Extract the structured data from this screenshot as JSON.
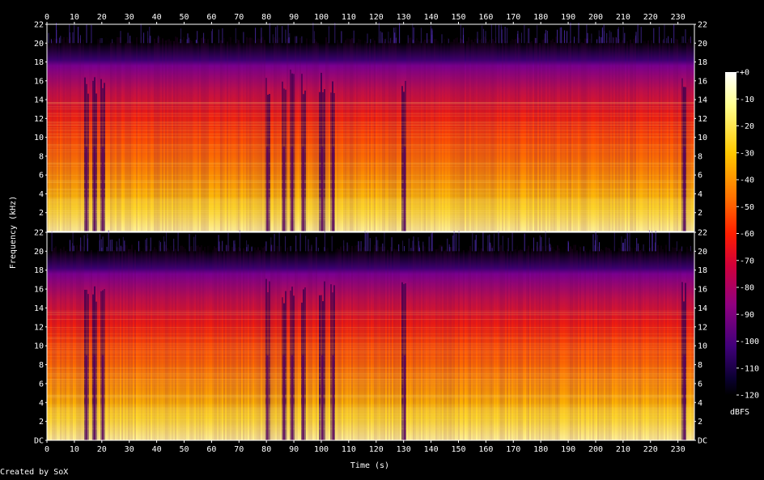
{
  "chart_data": {
    "type": "heatmap",
    "subtype": "spectrogram",
    "channels": 2,
    "xlabel": "Time (s)",
    "ylabel": "Frequency (kHz)",
    "xlim": [
      0,
      236
    ],
    "ylim": [
      0,
      22
    ],
    "x_ticks": [
      0,
      10,
      20,
      30,
      40,
      50,
      60,
      70,
      80,
      90,
      100,
      110,
      120,
      130,
      140,
      150,
      160,
      170,
      180,
      190,
      200,
      210,
      220,
      230
    ],
    "y_ticks_top": [
      "22",
      "20",
      "18",
      "16",
      "14",
      "12",
      "10",
      "8",
      "6",
      "4",
      "2"
    ],
    "y_ticks_bottom": [
      "22",
      "20",
      "18",
      "16",
      "14",
      "12",
      "10",
      "8",
      "6",
      "4",
      "2",
      "DC"
    ],
    "colorbar": {
      "label": "dBFS",
      "range": [
        -120,
        0
      ],
      "ticks": [
        "+0",
        "-10",
        "-20",
        "-30",
        "-40",
        "-50",
        "-60",
        "-70",
        "-80",
        "-90",
        "-100",
        "-110",
        "-120"
      ]
    },
    "energy_profile": {
      "description_values": "relative loudness over time, 0-1",
      "quiet_dips_s": [
        14,
        17,
        20,
        80,
        86,
        89,
        93,
        100,
        104,
        130,
        232
      ],
      "cutoff_khz": 20
    },
    "colors": {
      "scale": [
        "#000000",
        "#1a0040",
        "#4b007a",
        "#8a0080",
        "#c8003c",
        "#ff1e00",
        "#ff7a00",
        "#ffc800",
        "#ffff80",
        "#ffffff"
      ]
    }
  },
  "footer": {
    "credit": "Created by SoX"
  }
}
